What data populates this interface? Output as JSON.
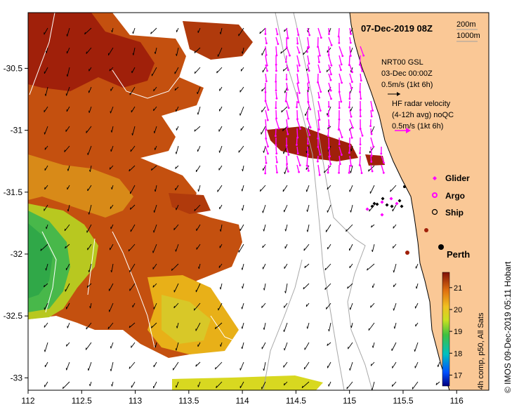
{
  "map": {
    "title": "07-Dec-2019 08Z",
    "scale_labels": [
      "200m",
      "1000m"
    ],
    "x_ticks": [
      "112",
      "112.5",
      "113",
      "113.5",
      "114",
      "114.5",
      "115",
      "115.5",
      "116"
    ],
    "y_ticks": [
      "-30.5",
      "-31",
      "-31.5",
      "-32",
      "-32.5",
      "-33"
    ],
    "lon_range": [
      112,
      116.3
    ],
    "lat_range": [
      -33.1,
      -30.05
    ],
    "legend": {
      "gsl_line1": "NRT00 GSL",
      "gsl_line2": "03-Dec 00:00Z",
      "gsl_line3": "0.5m/s (1kt 6h)",
      "hf_line1": "HF radar velocity",
      "hf_line2": "(4-12h avg) noQC",
      "hf_line3": "0.5m/s (1kt 6h)"
    },
    "markers": [
      {
        "label": "Glider",
        "color": "#ff00ff"
      },
      {
        "label": "Argo",
        "color": "#ff00ff"
      },
      {
        "label": "Ship",
        "color": "#000000"
      }
    ],
    "city": {
      "name": "Perth",
      "lon": 115.86,
      "lat": -31.95
    },
    "colorbar": {
      "ticks": [
        "21",
        "20",
        "19",
        "18",
        "17"
      ],
      "caption": "4h comp, p50, All Sats"
    },
    "credit": "© IMOS 09-Dec-2019 05:11 Hobart",
    "colors": {
      "land": "#fac896",
      "hf_arrow": "#ff00ff",
      "warm": "#a0200a",
      "cool": "#30b030"
    }
  }
}
